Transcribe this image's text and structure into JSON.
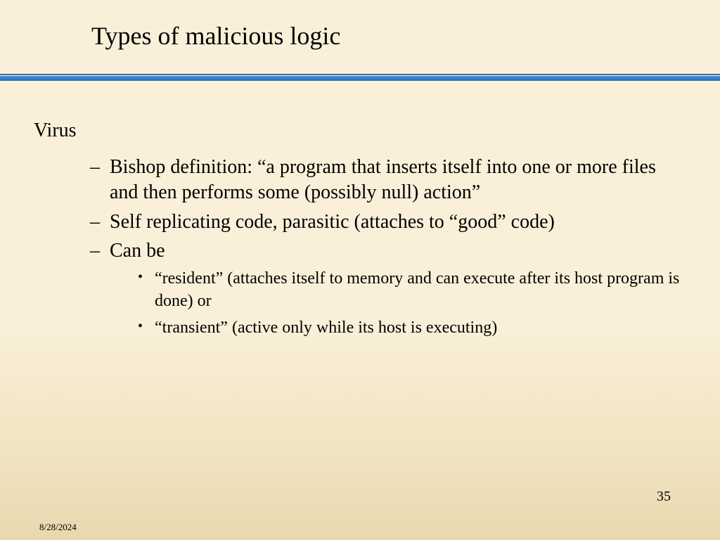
{
  "title": "Types of malicious logic",
  "section_heading": "Virus",
  "bullets_level1": [
    "Bishop definition: “a program that inserts itself into one or more files and then performs some (possibly null) action”",
    "Self replicating code, parasitic (attaches to “good” code)",
    "Can be"
  ],
  "bullets_level2": [
    "“resident” (attaches itself to memory and can execute after its host program is done) or",
    "“transient” (active only while its host is executing)"
  ],
  "page_number": "35",
  "date": "8/28/2024",
  "colors": {
    "background_top": "#faf0d9",
    "background_bottom": "#e8d8ae",
    "divider": "#2a6fb5",
    "text": "#000000"
  },
  "typography": {
    "title_fontsize": 36,
    "body_fontsize": 28,
    "sub_fontsize": 24,
    "pagenum_fontsize": 20,
    "date_fontsize": 13,
    "font_family": "Times New Roman"
  }
}
